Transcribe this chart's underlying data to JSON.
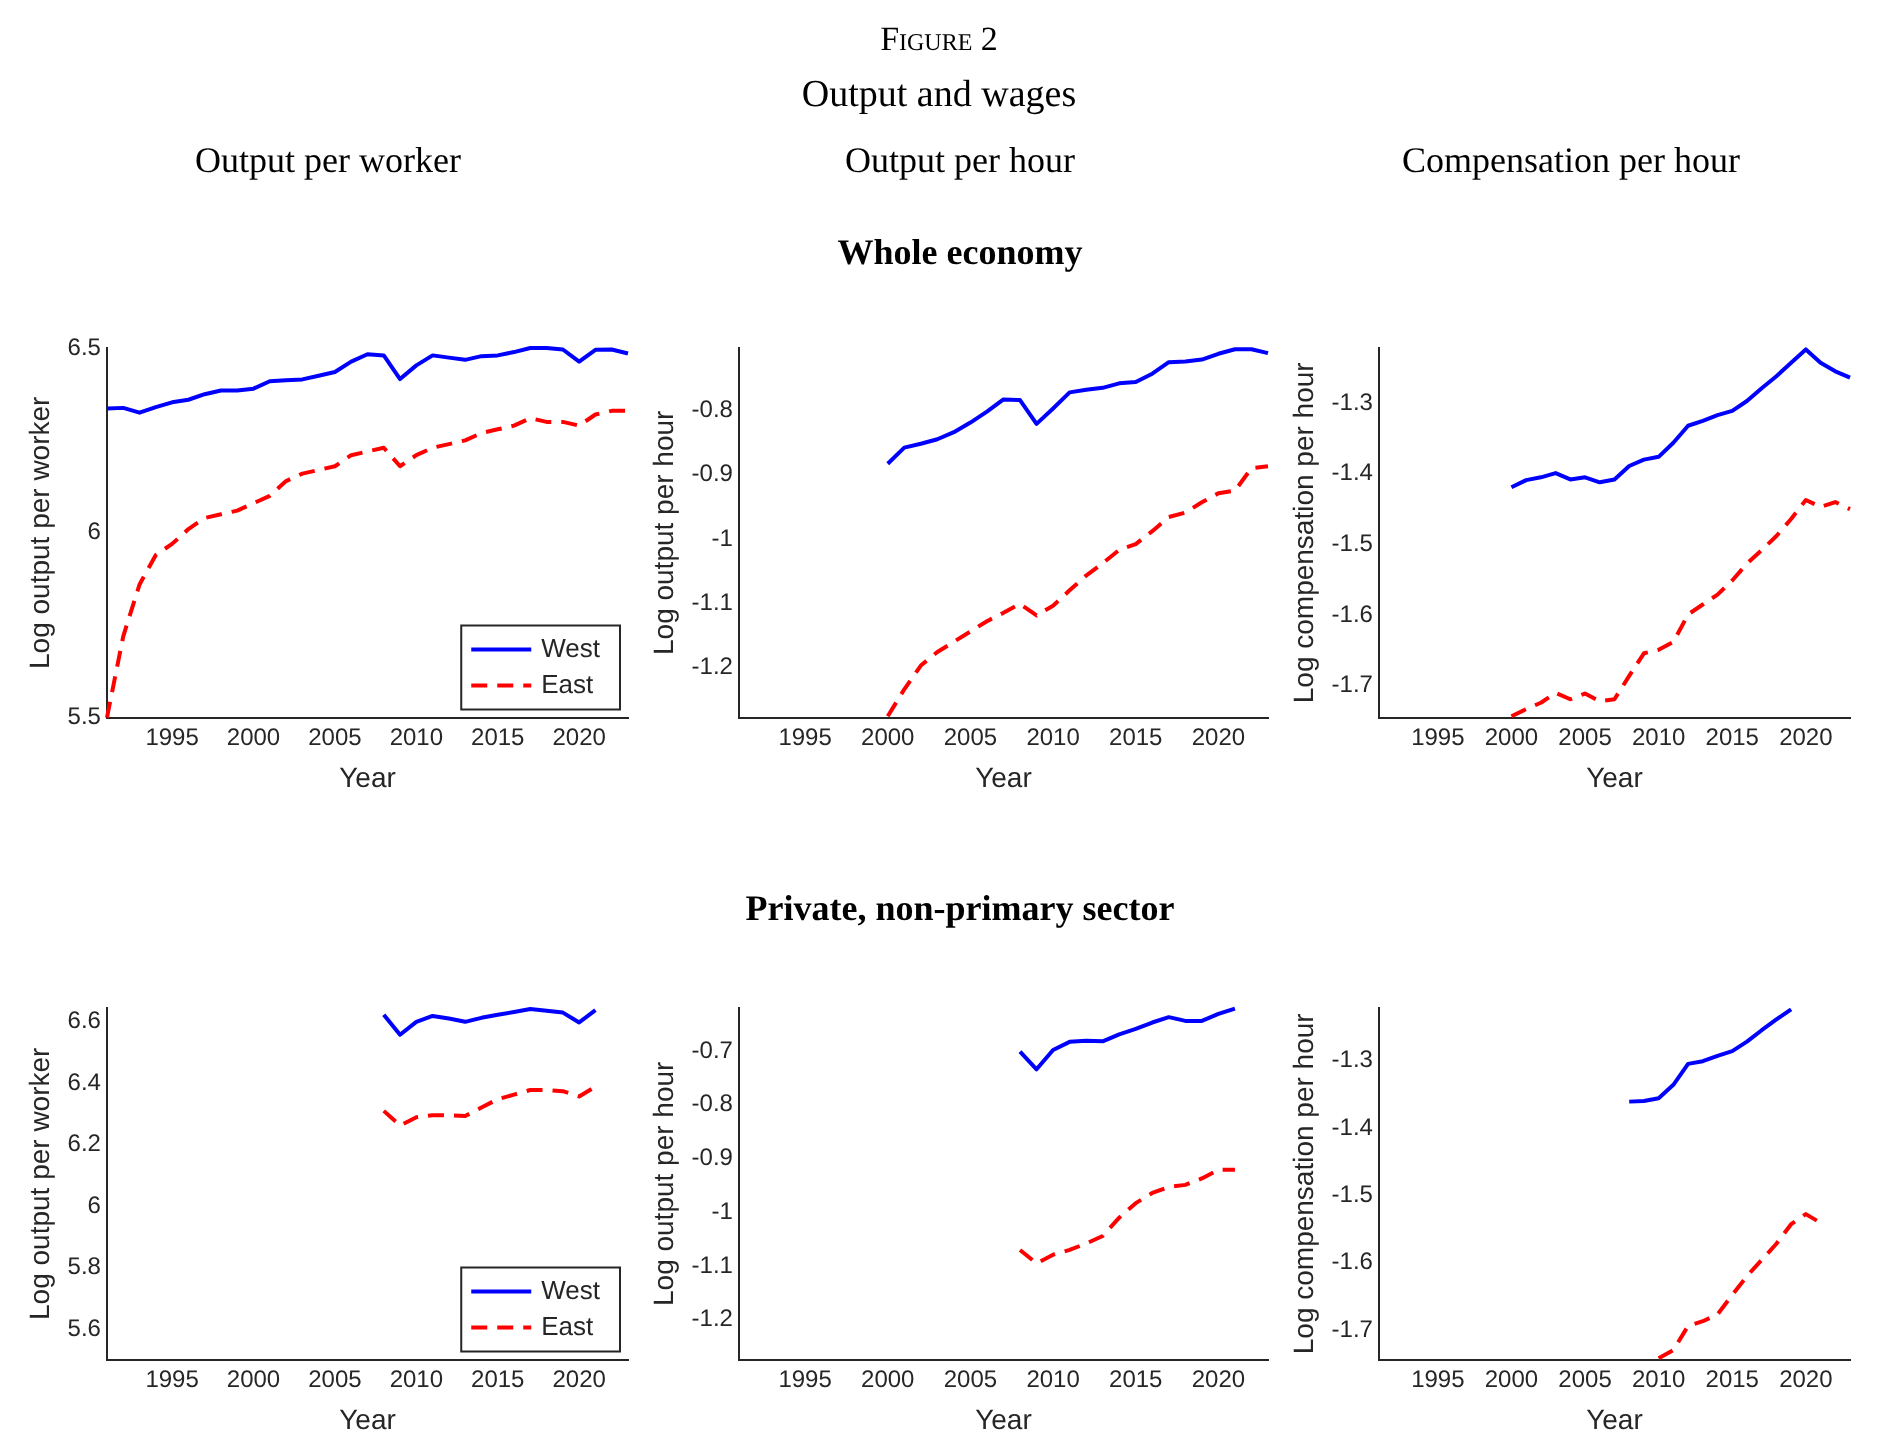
{
  "chart_data": [
    {
      "type": "line",
      "title": "Output per worker",
      "annotations": [
        "Figure 2",
        "Output and wages"
      ],
      "xlabel": "Year",
      "ylabel": "Log output per worker",
      "x": [
        1991,
        1992,
        1993,
        1994,
        1995,
        1996,
        1997,
        1998,
        1999,
        2000,
        2001,
        2002,
        2003,
        2004,
        2005,
        2006,
        2007,
        2008,
        2009,
        2010,
        2011,
        2012,
        2013,
        2014,
        2015,
        2016,
        2017,
        2018,
        2019,
        2020,
        2021,
        2022,
        2023
      ],
      "series": [
        {
          "name": "West",
          "color": "#0000ff",
          "line_style": "solid",
          "values": [
            6.336,
            6.338,
            6.325,
            6.34,
            6.353,
            6.36,
            6.375,
            6.385,
            6.385,
            6.39,
            6.41,
            6.413,
            6.415,
            6.425,
            6.435,
            6.463,
            6.483,
            6.48,
            6.416,
            6.453,
            6.48,
            6.474,
            6.468,
            6.478,
            6.48,
            6.489,
            6.5,
            6.5,
            6.496,
            6.463,
            6.495,
            6.496,
            6.485
          ]
        },
        {
          "name": "East",
          "color": "#ff0000",
          "line_style": "dashed",
          "values": [
            5.5,
            5.72,
            5.86,
            5.94,
            5.97,
            6.01,
            6.04,
            6.05,
            6.06,
            6.08,
            6.1,
            6.14,
            6.16,
            6.17,
            6.18,
            6.21,
            6.22,
            6.23,
            6.18,
            6.21,
            6.23,
            6.24,
            6.25,
            6.27,
            6.28,
            6.29,
            6.31,
            6.3,
            6.3,
            6.29,
            6.32,
            6.33,
            6.33
          ]
        }
      ],
      "xlim": [
        1991,
        2023
      ],
      "xticks": [
        1995,
        2000,
        2005,
        2010,
        2015,
        2020
      ],
      "ylim": [
        5.5,
        6.5
      ],
      "yticks": [
        5.5,
        6,
        6.5
      ],
      "legend": "bottom right",
      "marker": "none"
    },
    {
      "type": "line",
      "title": "Output per hour",
      "subtitle": "Whole economy",
      "xlabel": "Year",
      "ylabel": "Log output per hour",
      "x": [
        2000,
        2001,
        2002,
        2003,
        2004,
        2005,
        2006,
        2007,
        2008,
        2009,
        2010,
        2011,
        2012,
        2013,
        2014,
        2015,
        2016,
        2017,
        2018,
        2019,
        2020,
        2021,
        2022,
        2023
      ],
      "series": [
        {
          "color": "#0000ff",
          "line_style": "solid",
          "values": [
            -0.883,
            -0.858,
            -0.852,
            -0.845,
            -0.834,
            -0.819,
            -0.802,
            -0.783,
            -0.784,
            -0.821,
            -0.797,
            -0.772,
            -0.768,
            -0.765,
            -0.758,
            -0.756,
            -0.743,
            -0.725,
            -0.724,
            -0.721,
            -0.712,
            -0.705,
            -0.705,
            -0.711
          ]
        },
        {
          "color": "#ff0000",
          "line_style": "dashed",
          "values": [
            -1.276,
            -1.234,
            -1.197,
            -1.176,
            -1.16,
            -1.144,
            -1.128,
            -1.115,
            -1.101,
            -1.119,
            -1.104,
            -1.08,
            -1.057,
            -1.038,
            -1.017,
            -1.008,
            -0.988,
            -0.966,
            -0.959,
            -0.943,
            -0.929,
            -0.925,
            -0.89,
            -0.887
          ]
        }
      ],
      "xlim": [
        1991,
        2023
      ],
      "xticks": [
        1995,
        2000,
        2005,
        2010,
        2015,
        2020
      ],
      "ylim": [
        -1.278,
        -0.703
      ],
      "yticks": [
        -1.2,
        -1.1,
        -1,
        -0.9,
        -0.8
      ],
      "marker": "none"
    },
    {
      "type": "line",
      "title": "Compensation per hour",
      "xlabel": "Year",
      "ylabel": "Log compensation per hour",
      "x": [
        2000,
        2001,
        2002,
        2003,
        2004,
        2005,
        2006,
        2007,
        2008,
        2009,
        2010,
        2011,
        2012,
        2013,
        2014,
        2015,
        2016,
        2017,
        2018,
        2019,
        2020,
        2021,
        2022,
        2023
      ],
      "series": [
        {
          "color": "#0000ff",
          "line_style": "solid",
          "values": [
            -1.419,
            -1.409,
            -1.405,
            -1.399,
            -1.408,
            -1.405,
            -1.412,
            -1.408,
            -1.389,
            -1.38,
            -1.376,
            -1.356,
            -1.332,
            -1.325,
            -1.317,
            -1.311,
            -1.297,
            -1.279,
            -1.262,
            -1.243,
            -1.224,
            -1.243,
            -1.255,
            -1.264
          ]
        },
        {
          "color": "#ff0000",
          "line_style": "dashed",
          "values": [
            -1.743,
            -1.733,
            -1.724,
            -1.71,
            -1.719,
            -1.711,
            -1.722,
            -1.719,
            -1.686,
            -1.654,
            -1.649,
            -1.638,
            -1.599,
            -1.585,
            -1.571,
            -1.551,
            -1.527,
            -1.508,
            -1.488,
            -1.464,
            -1.437,
            -1.447,
            -1.44,
            -1.45
          ]
        }
      ],
      "xlim": [
        1991,
        2023
      ],
      "xticks": [
        1995,
        2000,
        2005,
        2010,
        2015,
        2020
      ],
      "ylim": [
        -1.745,
        -1.222
      ],
      "yticks": [
        -1.7,
        -1.6,
        -1.5,
        -1.4,
        -1.3
      ],
      "marker": "none"
    },
    {
      "type": "line",
      "xlabel": "Year",
      "ylabel": "Log output per worker",
      "x": [
        2008,
        2009,
        2010,
        2011,
        2012,
        2013,
        2014,
        2015,
        2016,
        2017,
        2018,
        2019,
        2020,
        2021
      ],
      "series": [
        {
          "name": "West",
          "color": "#0000ff",
          "line_style": "solid",
          "values": [
            6.623,
            6.558,
            6.6,
            6.619,
            6.611,
            6.6,
            6.613,
            6.623,
            6.632,
            6.642,
            6.636,
            6.63,
            6.598,
            6.638
          ]
        },
        {
          "name": "East",
          "color": "#ff0000",
          "line_style": "dashed",
          "values": [
            6.31,
            6.262,
            6.289,
            6.296,
            6.296,
            6.293,
            6.321,
            6.348,
            6.363,
            6.378,
            6.378,
            6.374,
            6.357,
            6.389
          ]
        }
      ],
      "xlim": [
        1991,
        2023
      ],
      "xticks": [
        1995,
        2000,
        2005,
        2010,
        2015,
        2020
      ],
      "ylim": [
        5.5,
        6.645
      ],
      "yticks": [
        5.6,
        5.8,
        6,
        6.2,
        6.4,
        6.6
      ],
      "legend": "bottom right",
      "marker": "none"
    },
    {
      "type": "line",
      "subtitle": "Private, non-primary sector",
      "xlabel": "Year",
      "ylabel": "Log output per hour",
      "x": [
        2008,
        2009,
        2010,
        2011,
        2012,
        2013,
        2014,
        2015,
        2016,
        2017,
        2018,
        2019,
        2020,
        2021
      ],
      "series": [
        {
          "color": "#0000ff",
          "line_style": "solid",
          "values": [
            -0.701,
            -0.734,
            -0.698,
            -0.683,
            -0.681,
            -0.682,
            -0.669,
            -0.659,
            -0.647,
            -0.637,
            -0.644,
            -0.644,
            -0.631,
            -0.621
          ]
        },
        {
          "color": "#ff0000",
          "line_style": "dashed",
          "values": [
            -1.07,
            -1.095,
            -1.079,
            -1.07,
            -1.058,
            -1.044,
            -1.01,
            -0.983,
            -0.964,
            -0.953,
            -0.949,
            -0.937,
            -0.921,
            -0.921
          ]
        }
      ],
      "xlim": [
        1991,
        2023
      ],
      "xticks": [
        1995,
        2000,
        2005,
        2010,
        2015,
        2020
      ],
      "ylim": [
        -1.274,
        -0.62
      ],
      "yticks": [
        -1.2,
        -1.1,
        -1,
        -0.9,
        -0.8,
        -0.7
      ],
      "marker": "none"
    },
    {
      "type": "line",
      "xlabel": "Year",
      "ylabel": "Log compensation per hour",
      "series": [
        {
          "color": "#0000ff",
          "line_style": "solid",
          "x": [
            2008,
            2009,
            2010,
            2011,
            2012,
            2013,
            2014,
            2015,
            2016,
            2017,
            2018,
            2019
          ],
          "values": [
            -1.361,
            -1.36,
            -1.356,
            -1.336,
            -1.305,
            -1.301,
            -1.293,
            -1.286,
            -1.272,
            -1.255,
            -1.239,
            -1.224
          ]
        },
        {
          "color": "#ff0000",
          "line_style": "dashed",
          "x": [
            2010,
            2011,
            2012,
            2013,
            2014,
            2015,
            2016,
            2017,
            2018,
            2019,
            2020,
            2021
          ],
          "values": [
            -1.742,
            -1.73,
            -1.694,
            -1.687,
            -1.677,
            -1.648,
            -1.62,
            -1.596,
            -1.572,
            -1.543,
            -1.528,
            -1.541
          ]
        }
      ],
      "xlim": [
        1991,
        2023
      ],
      "xticks": [
        1995,
        2000,
        2005,
        2010,
        2015,
        2020
      ],
      "ylim": [
        -1.744,
        -1.222
      ],
      "yticks": [
        -1.7,
        -1.6,
        -1.5,
        -1.4,
        -1.3
      ],
      "marker": "none"
    }
  ]
}
